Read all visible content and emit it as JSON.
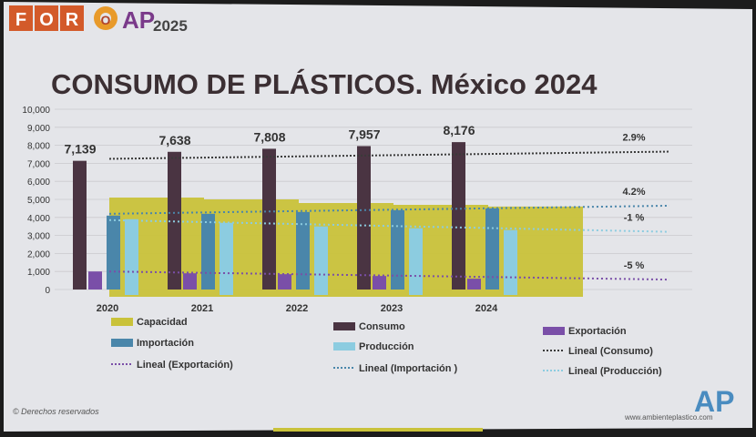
{
  "header": {
    "logo_letters": [
      "F",
      "O",
      "R",
      "O"
    ],
    "logo_ap": "AP",
    "logo_year": "2025"
  },
  "slide_title": "CONSUMO DE PLÁSTICOS. México 2024",
  "footer": {
    "copyright": "© Derechos reservados",
    "website": "www.ambienteplastico.com",
    "brand": "AP"
  },
  "colors": {
    "capacidad": "#c9c23a",
    "consumo": "#4a3442",
    "exportacion": "#7a4fa8",
    "importacion": "#4a86aa",
    "produccion": "#8ccce0",
    "lineal_consumo": "#3a3a3a",
    "lineal_exportacion": "#7a4fa8",
    "lineal_importacion": "#4a86aa",
    "lineal_produccion": "#8ccce0"
  },
  "chart_data": {
    "type": "bar",
    "categories": [
      "2020",
      "2021",
      "2022",
      "2023",
      "2024"
    ],
    "yticks": [
      "0",
      "1,000",
      "2,000",
      "3,000",
      "4,000",
      "5,000",
      "6,000",
      "7,000",
      "8,000",
      "9,000",
      "10,000"
    ],
    "ylim": [
      0,
      10000
    ],
    "grid": true,
    "legend_position": "bottom",
    "capacidad": {
      "name": "Capacidad",
      "values": [
        5100,
        5000,
        4800,
        4700,
        4600
      ]
    },
    "series": [
      {
        "key": "consumo",
        "name": "Consumo",
        "values": [
          7139,
          7638,
          7808,
          7957,
          8176
        ],
        "labels": [
          "7,139",
          "7,638",
          "7,808",
          "7,957",
          "8,176"
        ]
      },
      {
        "key": "exportacion",
        "name": "Exportación",
        "values": [
          1000,
          900,
          850,
          750,
          600
        ]
      },
      {
        "key": "importacion",
        "name": "Importación",
        "values": [
          4100,
          4200,
          4300,
          4400,
          4500
        ]
      },
      {
        "key": "produccion",
        "name": "Producción",
        "values": [
          3900,
          3700,
          3500,
          3400,
          3300
        ]
      }
    ],
    "trendlines": [
      {
        "key": "lineal_consumo",
        "name": "Lineal (Consumo)",
        "from": 7250,
        "to": 7650,
        "label": "2.9%"
      },
      {
        "key": "lineal_importacion",
        "name": "Lineal (Importación )",
        "from": 4200,
        "to": 4650,
        "label": "4.2%"
      },
      {
        "key": "lineal_produccion",
        "name": "Lineal (Producción)",
        "from": 3850,
        "to": 3200,
        "label": "-1 %"
      },
      {
        "key": "lineal_exportacion",
        "name": "Lineal (Exportación)",
        "from": 1000,
        "to": 550,
        "label": "-5 %"
      }
    ]
  }
}
